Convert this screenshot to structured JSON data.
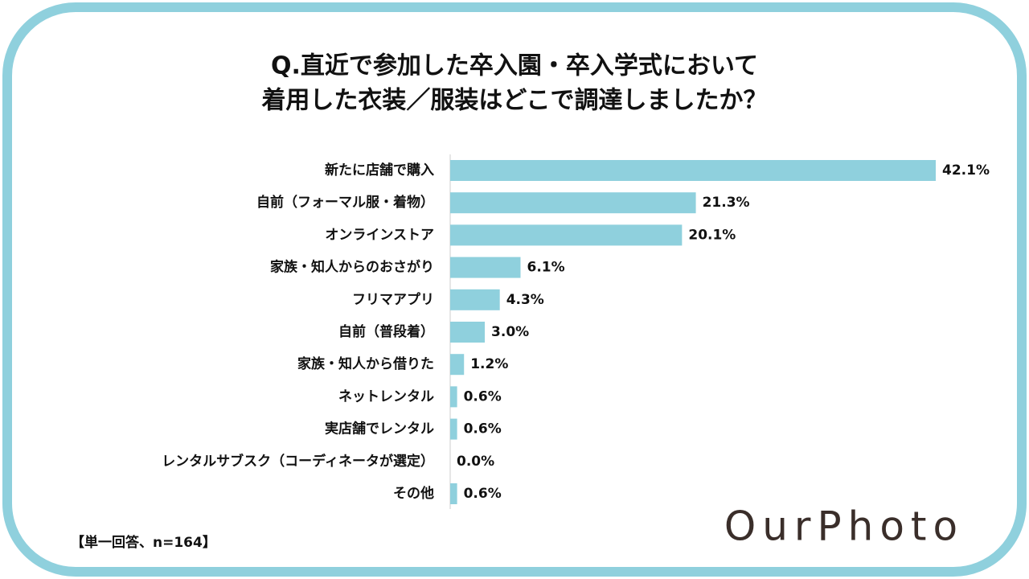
{
  "chart_data": {
    "type": "bar",
    "title": [
      "Q.直近で参加した卒入園・卒入学式において",
      "着用した衣装／服装はどこで調達しましたか？"
    ],
    "categories": [
      "新たに店舗で購入",
      "自前（フォーマル服・着物）",
      "オンラインストア",
      "家族・知人からのおさがり",
      "フリマアプリ",
      "自前（普段着）",
      "家族・知人から借りた",
      "ネットレンタル",
      "実店舗でレンタル",
      "レンタルサブスク（コーディネータが選定）",
      "その他"
    ],
    "values": [
      42.1,
      21.3,
      20.1,
      6.1,
      4.3,
      3.0,
      1.2,
      0.6,
      0.6,
      0.0,
      0.6
    ],
    "value_labels": [
      "42.1%",
      "21.3%",
      "20.1%",
      "6.1%",
      "4.3%",
      "3.0%",
      "1.2%",
      "0.6%",
      "0.6%",
      "0.0%",
      "0.6%"
    ],
    "color": "#8fd0dd",
    "note": "【単一回答、n=164】",
    "logo": "OurPhoto"
  }
}
